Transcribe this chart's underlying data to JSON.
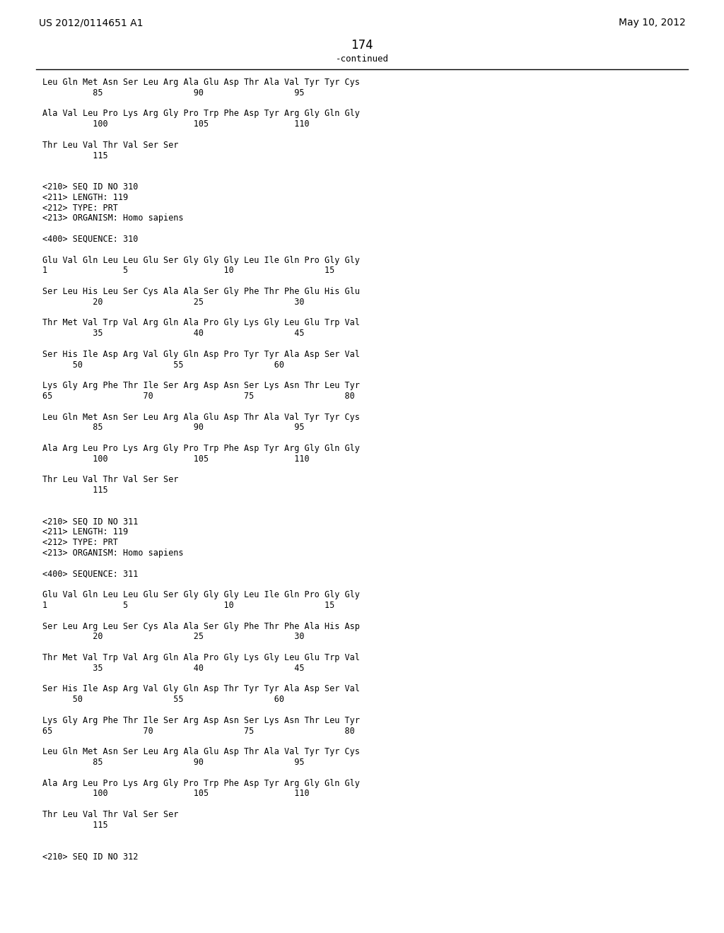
{
  "bg_color": "#ffffff",
  "text_color": "#000000",
  "header_left": "US 2012/0114651 A1",
  "header_right": "May 10, 2012",
  "page_number": "174",
  "continued_label": "-continued",
  "font_size": 8.5,
  "mono_font": "DejaVu Sans Mono",
  "header_font_size": 10,
  "page_num_font_size": 12,
  "lines": [
    {
      "text": "Leu Gln Met Asn Ser Leu Arg Ala Glu Asp Thr Ala Val Tyr Tyr Cys",
      "indent": 0,
      "type": "seq"
    },
    {
      "text": "          85                  90                  95",
      "indent": 0,
      "type": "num"
    },
    {
      "text": "",
      "indent": 0,
      "type": "blank"
    },
    {
      "text": "Ala Val Leu Pro Lys Arg Gly Pro Trp Phe Asp Tyr Arg Gly Gln Gly",
      "indent": 0,
      "type": "seq"
    },
    {
      "text": "          100                 105                 110",
      "indent": 0,
      "type": "num"
    },
    {
      "text": "",
      "indent": 0,
      "type": "blank"
    },
    {
      "text": "Thr Leu Val Thr Val Ser Ser",
      "indent": 0,
      "type": "seq"
    },
    {
      "text": "          115",
      "indent": 0,
      "type": "num"
    },
    {
      "text": "",
      "indent": 0,
      "type": "blank"
    },
    {
      "text": "",
      "indent": 0,
      "type": "blank"
    },
    {
      "text": "<210> SEQ ID NO 310",
      "indent": 0,
      "type": "meta"
    },
    {
      "text": "<211> LENGTH: 119",
      "indent": 0,
      "type": "meta"
    },
    {
      "text": "<212> TYPE: PRT",
      "indent": 0,
      "type": "meta"
    },
    {
      "text": "<213> ORGANISM: Homo sapiens",
      "indent": 0,
      "type": "meta"
    },
    {
      "text": "",
      "indent": 0,
      "type": "blank"
    },
    {
      "text": "<400> SEQUENCE: 310",
      "indent": 0,
      "type": "meta"
    },
    {
      "text": "",
      "indent": 0,
      "type": "blank"
    },
    {
      "text": "Glu Val Gln Leu Leu Glu Ser Gly Gly Gly Leu Ile Gln Pro Gly Gly",
      "indent": 0,
      "type": "seq"
    },
    {
      "text": "1               5                   10                  15",
      "indent": 0,
      "type": "num"
    },
    {
      "text": "",
      "indent": 0,
      "type": "blank"
    },
    {
      "text": "Ser Leu His Leu Ser Cys Ala Ala Ser Gly Phe Thr Phe Glu His Glu",
      "indent": 0,
      "type": "seq"
    },
    {
      "text": "          20                  25                  30",
      "indent": 0,
      "type": "num"
    },
    {
      "text": "",
      "indent": 0,
      "type": "blank"
    },
    {
      "text": "Thr Met Val Trp Val Arg Gln Ala Pro Gly Lys Gly Leu Glu Trp Val",
      "indent": 0,
      "type": "seq"
    },
    {
      "text": "          35                  40                  45",
      "indent": 0,
      "type": "num"
    },
    {
      "text": "",
      "indent": 0,
      "type": "blank"
    },
    {
      "text": "Ser His Ile Asp Arg Val Gly Gln Asp Pro Tyr Tyr Ala Asp Ser Val",
      "indent": 0,
      "type": "seq"
    },
    {
      "text": "      50                  55                  60",
      "indent": 0,
      "type": "num"
    },
    {
      "text": "",
      "indent": 0,
      "type": "blank"
    },
    {
      "text": "Lys Gly Arg Phe Thr Ile Ser Arg Asp Asn Ser Lys Asn Thr Leu Tyr",
      "indent": 0,
      "type": "seq"
    },
    {
      "text": "65                  70                  75                  80",
      "indent": 0,
      "type": "num"
    },
    {
      "text": "",
      "indent": 0,
      "type": "blank"
    },
    {
      "text": "Leu Gln Met Asn Ser Leu Arg Ala Glu Asp Thr Ala Val Tyr Tyr Cys",
      "indent": 0,
      "type": "seq"
    },
    {
      "text": "          85                  90                  95",
      "indent": 0,
      "type": "num"
    },
    {
      "text": "",
      "indent": 0,
      "type": "blank"
    },
    {
      "text": "Ala Arg Leu Pro Lys Arg Gly Pro Trp Phe Asp Tyr Arg Gly Gln Gly",
      "indent": 0,
      "type": "seq"
    },
    {
      "text": "          100                 105                 110",
      "indent": 0,
      "type": "num"
    },
    {
      "text": "",
      "indent": 0,
      "type": "blank"
    },
    {
      "text": "Thr Leu Val Thr Val Ser Ser",
      "indent": 0,
      "type": "seq"
    },
    {
      "text": "          115",
      "indent": 0,
      "type": "num"
    },
    {
      "text": "",
      "indent": 0,
      "type": "blank"
    },
    {
      "text": "",
      "indent": 0,
      "type": "blank"
    },
    {
      "text": "<210> SEQ ID NO 311",
      "indent": 0,
      "type": "meta"
    },
    {
      "text": "<211> LENGTH: 119",
      "indent": 0,
      "type": "meta"
    },
    {
      "text": "<212> TYPE: PRT",
      "indent": 0,
      "type": "meta"
    },
    {
      "text": "<213> ORGANISM: Homo sapiens",
      "indent": 0,
      "type": "meta"
    },
    {
      "text": "",
      "indent": 0,
      "type": "blank"
    },
    {
      "text": "<400> SEQUENCE: 311",
      "indent": 0,
      "type": "meta"
    },
    {
      "text": "",
      "indent": 0,
      "type": "blank"
    },
    {
      "text": "Glu Val Gln Leu Leu Glu Ser Gly Gly Gly Leu Ile Gln Pro Gly Gly",
      "indent": 0,
      "type": "seq"
    },
    {
      "text": "1               5                   10                  15",
      "indent": 0,
      "type": "num"
    },
    {
      "text": "",
      "indent": 0,
      "type": "blank"
    },
    {
      "text": "Ser Leu Arg Leu Ser Cys Ala Ala Ser Gly Phe Thr Phe Ala His Asp",
      "indent": 0,
      "type": "seq"
    },
    {
      "text": "          20                  25                  30",
      "indent": 0,
      "type": "num"
    },
    {
      "text": "",
      "indent": 0,
      "type": "blank"
    },
    {
      "text": "Thr Met Val Trp Val Arg Gln Ala Pro Gly Lys Gly Leu Glu Trp Val",
      "indent": 0,
      "type": "seq"
    },
    {
      "text": "          35                  40                  45",
      "indent": 0,
      "type": "num"
    },
    {
      "text": "",
      "indent": 0,
      "type": "blank"
    },
    {
      "text": "Ser His Ile Asp Arg Val Gly Gln Asp Thr Tyr Tyr Ala Asp Ser Val",
      "indent": 0,
      "type": "seq"
    },
    {
      "text": "      50                  55                  60",
      "indent": 0,
      "type": "num"
    },
    {
      "text": "",
      "indent": 0,
      "type": "blank"
    },
    {
      "text": "Lys Gly Arg Phe Thr Ile Ser Arg Asp Asn Ser Lys Asn Thr Leu Tyr",
      "indent": 0,
      "type": "seq"
    },
    {
      "text": "65                  70                  75                  80",
      "indent": 0,
      "type": "num"
    },
    {
      "text": "",
      "indent": 0,
      "type": "blank"
    },
    {
      "text": "Leu Gln Met Asn Ser Leu Arg Ala Glu Asp Thr Ala Val Tyr Tyr Cys",
      "indent": 0,
      "type": "seq"
    },
    {
      "text": "          85                  90                  95",
      "indent": 0,
      "type": "num"
    },
    {
      "text": "",
      "indent": 0,
      "type": "blank"
    },
    {
      "text": "Ala Arg Leu Pro Lys Arg Gly Pro Trp Phe Asp Tyr Arg Gly Gln Gly",
      "indent": 0,
      "type": "seq"
    },
    {
      "text": "          100                 105                 110",
      "indent": 0,
      "type": "num"
    },
    {
      "text": "",
      "indent": 0,
      "type": "blank"
    },
    {
      "text": "Thr Leu Val Thr Val Ser Ser",
      "indent": 0,
      "type": "seq"
    },
    {
      "text": "          115",
      "indent": 0,
      "type": "num"
    },
    {
      "text": "",
      "indent": 0,
      "type": "blank"
    },
    {
      "text": "",
      "indent": 0,
      "type": "blank"
    },
    {
      "text": "<210> SEQ ID NO 312",
      "indent": 0,
      "type": "meta"
    }
  ]
}
